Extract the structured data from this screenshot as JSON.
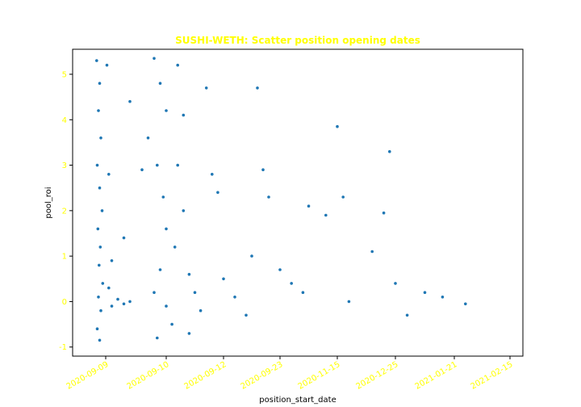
{
  "chart_data": {
    "type": "scatter",
    "title": "SUSHI-WETH: Scatter position opening dates",
    "xlabel": "position_start_date",
    "ylabel": "pool_roi",
    "x_tick_labels": [
      "2020-09-09",
      "2020-09-10",
      "2020-09-12",
      "2020-09-23",
      "2020-11-15",
      "2020-12-25",
      "2021-01-21",
      "2021-02-15"
    ],
    "y_ticks": [
      -1,
      0,
      1,
      2,
      3,
      4,
      5
    ],
    "ylim": [
      -1.2,
      5.55
    ],
    "grid": false,
    "marker_color": "#1f77b4",
    "title_color": "#ffff00",
    "tick_color": "#ffff00",
    "series": [
      {
        "values": [
          {
            "x": -0.15,
            "y": 5.3
          },
          {
            "x": -0.1,
            "y": 4.8
          },
          {
            "x": -0.12,
            "y": 4.2
          },
          {
            "x": -0.08,
            "y": 3.6
          },
          {
            "x": -0.14,
            "y": 3.0
          },
          {
            "x": -0.1,
            "y": 2.5
          },
          {
            "x": -0.06,
            "y": 2.0
          },
          {
            "x": -0.13,
            "y": 1.6
          },
          {
            "x": -0.09,
            "y": 1.2
          },
          {
            "x": -0.11,
            "y": 0.8
          },
          {
            "x": -0.05,
            "y": 0.4
          },
          {
            "x": -0.12,
            "y": 0.1
          },
          {
            "x": -0.08,
            "y": -0.2
          },
          {
            "x": -0.14,
            "y": -0.6
          },
          {
            "x": -0.1,
            "y": -0.85
          },
          {
            "x": 0.05,
            "y": 0.3
          },
          {
            "x": 0.1,
            "y": -0.1
          },
          {
            "x": 0.2,
            "y": 0.05
          },
          {
            "x": 0.3,
            "y": -0.05
          },
          {
            "x": 0.4,
            "y": 0.0
          },
          {
            "x": 0.1,
            "y": 0.9
          },
          {
            "x": 0.05,
            "y": 2.8
          },
          {
            "x": 0.02,
            "y": 5.2
          },
          {
            "x": 0.3,
            "y": 1.4
          },
          {
            "x": 0.6,
            "y": 2.9
          },
          {
            "x": 0.4,
            "y": 4.4
          },
          {
            "x": 0.7,
            "y": 3.6
          },
          {
            "x": 0.8,
            "y": 5.35
          },
          {
            "x": 0.9,
            "y": 4.8
          },
          {
            "x": 1.0,
            "y": 4.2
          },
          {
            "x": 0.85,
            "y": 3.0
          },
          {
            "x": 0.95,
            "y": 2.3
          },
          {
            "x": 1.0,
            "y": 1.6
          },
          {
            "x": 0.9,
            "y": 0.7
          },
          {
            "x": 0.8,
            "y": 0.2
          },
          {
            "x": 1.0,
            "y": -0.1
          },
          {
            "x": 1.1,
            "y": -0.5
          },
          {
            "x": 0.85,
            "y": -0.8
          },
          {
            "x": 1.2,
            "y": 5.2
          },
          {
            "x": 1.3,
            "y": 4.1
          },
          {
            "x": 1.2,
            "y": 3.0
          },
          {
            "x": 1.3,
            "y": 2.0
          },
          {
            "x": 1.15,
            "y": 1.2
          },
          {
            "x": 1.4,
            "y": 0.6
          },
          {
            "x": 1.5,
            "y": 0.2
          },
          {
            "x": 1.6,
            "y": -0.2
          },
          {
            "x": 1.4,
            "y": -0.7
          },
          {
            "x": 1.7,
            "y": 4.7
          },
          {
            "x": 1.8,
            "y": 2.8
          },
          {
            "x": 1.9,
            "y": 2.4
          },
          {
            "x": 2.0,
            "y": 0.5
          },
          {
            "x": 2.2,
            "y": 0.1
          },
          {
            "x": 2.4,
            "y": -0.3
          },
          {
            "x": 2.6,
            "y": 4.7
          },
          {
            "x": 2.7,
            "y": 2.9
          },
          {
            "x": 2.8,
            "y": 2.3
          },
          {
            "x": 2.5,
            "y": 1.0
          },
          {
            "x": 3.0,
            "y": 0.7
          },
          {
            "x": 3.2,
            "y": 0.4
          },
          {
            "x": 3.4,
            "y": 0.2
          },
          {
            "x": 3.5,
            "y": 2.1
          },
          {
            "x": 3.8,
            "y": 1.9
          },
          {
            "x": 4.0,
            "y": 3.85
          },
          {
            "x": 4.1,
            "y": 2.3
          },
          {
            "x": 4.2,
            "y": 0.0
          },
          {
            "x": 4.6,
            "y": 1.1
          },
          {
            "x": 4.8,
            "y": 1.95
          },
          {
            "x": 4.9,
            "y": 3.3
          },
          {
            "x": 5.0,
            "y": 0.4
          },
          {
            "x": 5.2,
            "y": -0.3
          },
          {
            "x": 5.5,
            "y": 0.2
          },
          {
            "x": 5.8,
            "y": 0.1
          },
          {
            "x": 6.2,
            "y": -0.05
          }
        ]
      }
    ]
  }
}
